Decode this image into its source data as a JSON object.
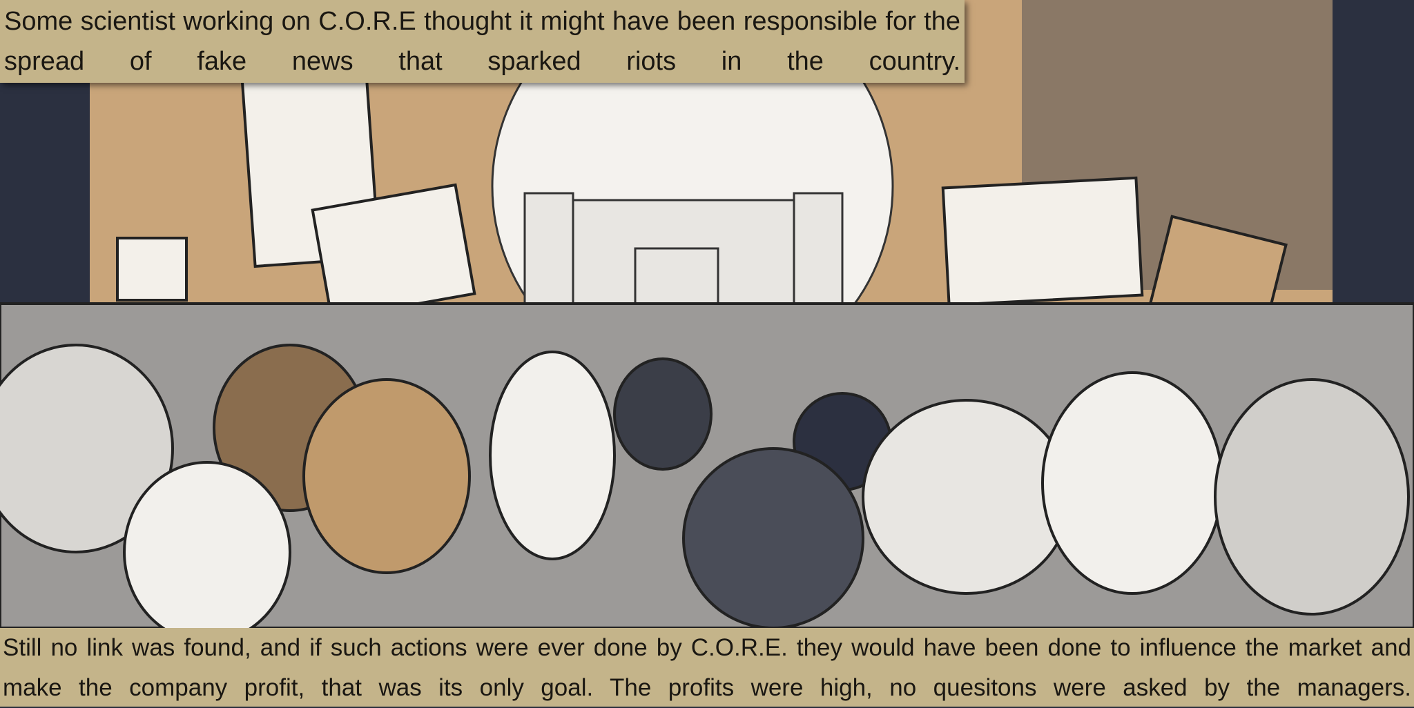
{
  "captions": {
    "top": "Some scientist working on C.O.R.E thought it might have been responsible for the spread of fake news that sparked riots in the country.",
    "bottom": "Still no link was found, and if such actions were ever done by C.O.R.E. they would have been done to influence the market and make the company profit, that was its only goal. The profits were high, no quesitons were asked by the managers."
  }
}
